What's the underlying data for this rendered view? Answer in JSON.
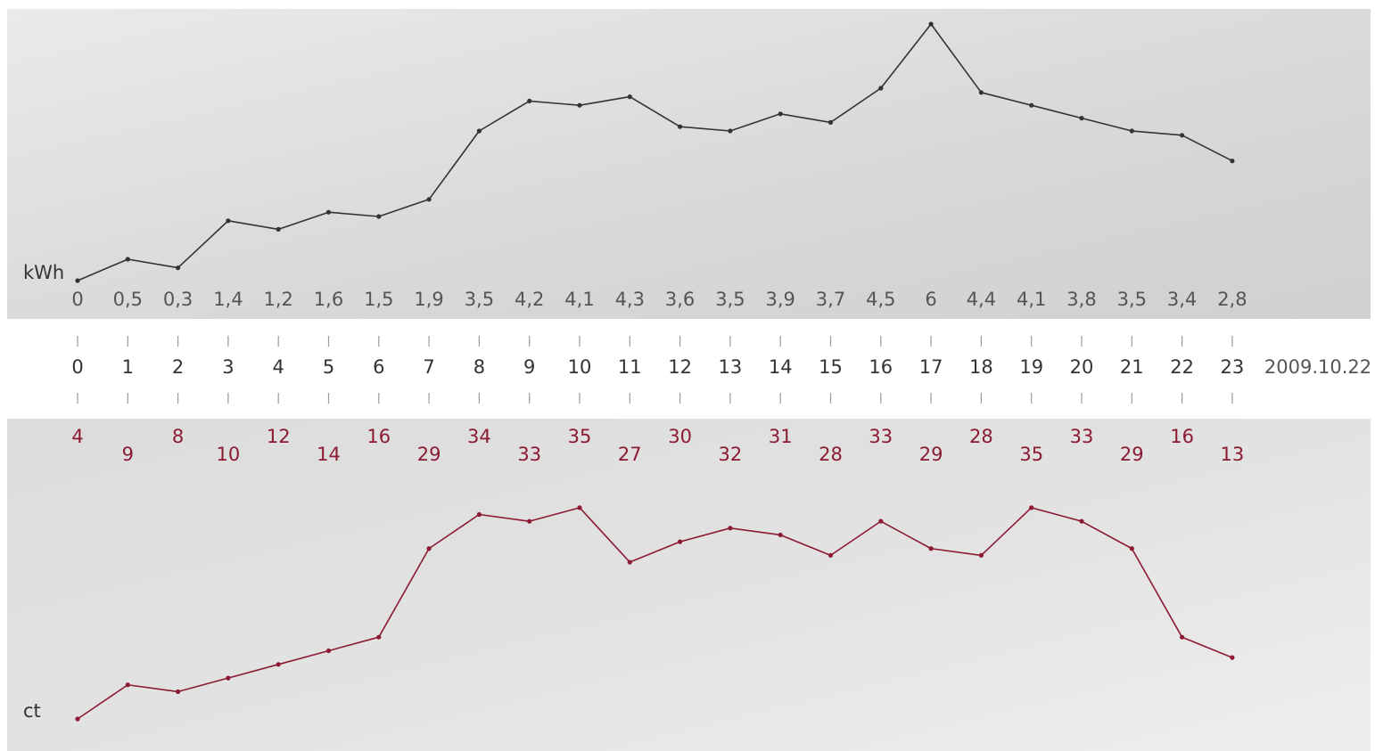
{
  "chart_data": [
    {
      "type": "line",
      "x": [
        0,
        1,
        2,
        3,
        4,
        5,
        6,
        7,
        8,
        9,
        10,
        11,
        12,
        13,
        14,
        15,
        16,
        17,
        18,
        19,
        20,
        21,
        22,
        23
      ],
      "series": [
        {
          "values": [
            0,
            0.5,
            0.3,
            1.4,
            1.2,
            1.6,
            1.5,
            1.9,
            3.5,
            4.2,
            4.1,
            4.3,
            3.6,
            3.5,
            3.9,
            3.7,
            4.5,
            6,
            4.4,
            4.1,
            3.8,
            3.5,
            3.4,
            2.8
          ]
        }
      ],
      "value_labels": [
        "0",
        "0,5",
        "0,3",
        "1,4",
        "1,2",
        "1,6",
        "1,5",
        "1,9",
        "3,5",
        "4,2",
        "4,1",
        "4,3",
        "3,6",
        "3,5",
        "3,9",
        "3,7",
        "4,5",
        "6",
        "4,4",
        "4,1",
        "3,8",
        "3,5",
        "3,4",
        "2,8"
      ],
      "ylabel": "kWh",
      "grid": false,
      "color": "#333333"
    },
    {
      "type": "line",
      "x": [
        0,
        1,
        2,
        3,
        4,
        5,
        6,
        7,
        8,
        9,
        10,
        11,
        12,
        13,
        14,
        15,
        16,
        17,
        18,
        19,
        20,
        21,
        22,
        23
      ],
      "series": [
        {
          "values": [
            4,
            9,
            8,
            10,
            12,
            14,
            16,
            29,
            34,
            33,
            35,
            27,
            30,
            32,
            31,
            28,
            33,
            29,
            28,
            35,
            33,
            29,
            16,
            13
          ]
        }
      ],
      "value_labels": [
        "4",
        "9",
        "8",
        "10",
        "12",
        "14",
        "16",
        "29",
        "34",
        "33",
        "35",
        "27",
        "30",
        "32",
        "31",
        "28",
        "33",
        "29",
        "28",
        "35",
        "33",
        "29",
        "16",
        "13"
      ],
      "ylabel": "ct",
      "grid": false,
      "color": "#8b1a32"
    }
  ],
  "axis": {
    "tick_labels": [
      "0",
      "1",
      "2",
      "3",
      "4",
      "5",
      "6",
      "7",
      "8",
      "9",
      "10",
      "11",
      "12",
      "13",
      "14",
      "15",
      "16",
      "17",
      "18",
      "19",
      "20",
      "21",
      "22",
      "23"
    ],
    "date": "2009.10.22"
  },
  "colors": {
    "panel": "#d8d8d8",
    "text": "#555555",
    "kwh_line": "#333333",
    "ct": "#8b1a32"
  }
}
